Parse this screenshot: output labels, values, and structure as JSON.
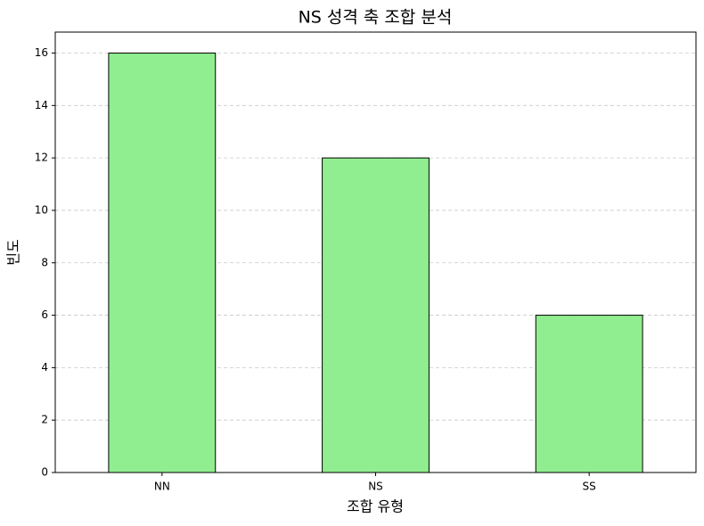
{
  "chart_data": {
    "type": "bar",
    "title": "NS 성격 축 조합 분석",
    "x_label": "조합 유형",
    "y_label": "빈도",
    "categories": [
      "NN",
      "NS",
      "SS"
    ],
    "values": [
      16,
      12,
      6
    ],
    "color": "#90ee90",
    "edgecolor": "#000000",
    "ylim": [
      0,
      16.8
    ],
    "yticks": [
      0,
      2,
      4,
      6,
      8,
      10,
      12,
      14,
      16
    ],
    "grid": true
  }
}
